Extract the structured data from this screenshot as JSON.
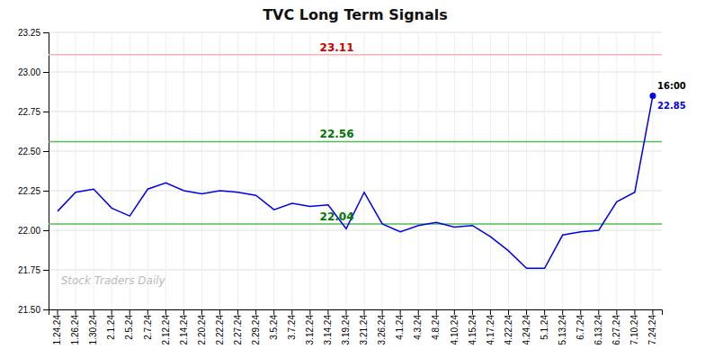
{
  "chart_data": {
    "type": "line",
    "title": "TVC Long Term Signals",
    "categories": [
      "1.24.24",
      "1.26.24",
      "1.30.24",
      "2.1.24",
      "2.5.24",
      "2.7.24",
      "2.12.24",
      "2.14.24",
      "2.20.24",
      "2.22.24",
      "2.27.24",
      "2.29.24",
      "3.5.24",
      "3.7.24",
      "3.12.24",
      "3.14.24",
      "3.19.24",
      "3.21.24",
      "3.26.24",
      "4.1.24",
      "4.3.24",
      "4.8.24",
      "4.10.24",
      "4.15.24",
      "4.17.24",
      "4.22.24",
      "4.24.24",
      "5.1.24",
      "5.13.24",
      "6.7.24",
      "6.13.24",
      "6.27.24",
      "7.10.24",
      "7.24.24"
    ],
    "values": [
      22.12,
      22.24,
      22.26,
      22.14,
      22.09,
      22.26,
      22.3,
      22.25,
      22.23,
      22.25,
      22.24,
      22.22,
      22.13,
      22.17,
      22.15,
      22.16,
      22.01,
      22.24,
      22.04,
      21.99,
      22.03,
      22.05,
      22.02,
      22.03,
      21.96,
      21.87,
      21.76,
      21.76,
      21.97,
      21.99,
      22.0,
      22.18,
      22.24,
      22.85
    ],
    "color": "#0000EE",
    "ylim": [
      21.5,
      23.25
    ],
    "yticks": [
      {
        "value": 21.5,
        "label": "21.50"
      },
      21.75,
      {
        "value": 22.0,
        "label": "22.00"
      },
      22.25,
      {
        "value": 22.5,
        "label": "22.50"
      },
      22.75,
      {
        "value": 23.0,
        "label": "23.00"
      },
      23.25
    ],
    "grid": true,
    "reference_lines": [
      {
        "value": 23.11,
        "label": "23.11",
        "color": "#FFB0B0",
        "label_color": "#CC0000"
      },
      {
        "value": 22.56,
        "label": "22.56",
        "color": "#55BB55",
        "label_color": "#007700"
      },
      {
        "value": 22.04,
        "label": "22.04",
        "color": "#55BB55",
        "label_color": "#007700"
      }
    ],
    "last_point": {
      "value": 22.85,
      "time": "16:00",
      "label": "22.85"
    },
    "annotations": [
      {
        "text": "Stock Traders Daily"
      }
    ]
  }
}
